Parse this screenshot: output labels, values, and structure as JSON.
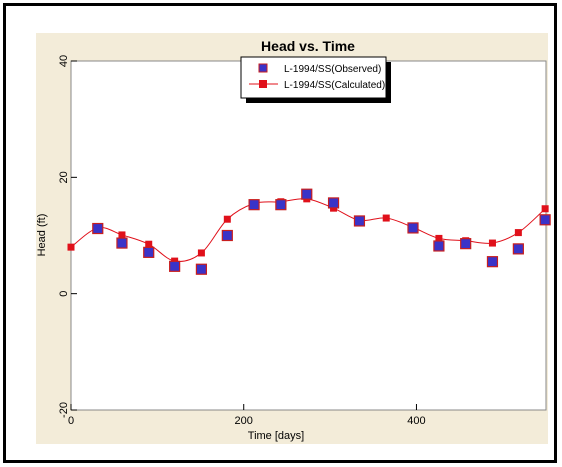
{
  "colors": {
    "panel": "#f3ecd9",
    "plot": "#ffffff",
    "observed_fill": "#3a33c8",
    "observed_edge": "#c81e1e",
    "calculated": "#e0101a"
  },
  "chart_data": {
    "type": "scatter",
    "title": "Head vs. Time",
    "xlabel": "Time  [days]",
    "ylabel": "Head (ft)",
    "xlim": [
      0,
      550
    ],
    "ylim": [
      -20,
      40
    ],
    "x_ticks": [
      "0",
      "200",
      "400"
    ],
    "x_tick_values": [
      0,
      200,
      400
    ],
    "y_ticks": [
      "-20",
      "0",
      "20",
      "40"
    ],
    "y_tick_values": [
      -20,
      0,
      20,
      40
    ],
    "grid": false,
    "legend_position": "top-center",
    "series": [
      {
        "name": "L-1994/SS(Observed)",
        "style": "markers",
        "x": [
          31,
          59,
          90,
          120,
          151,
          181,
          212,
          243,
          273,
          304,
          334,
          396,
          426,
          457,
          488,
          518,
          549
        ],
        "y": [
          11.2,
          8.7,
          7.1,
          4.7,
          4.2,
          10.0,
          15.3,
          15.3,
          17.1,
          15.6,
          12.5,
          11.3,
          8.2,
          8.6,
          5.5,
          7.7,
          12.7
        ]
      },
      {
        "name": "L-1994/SS(Calculated)",
        "style": "line+markers",
        "x": [
          0,
          31,
          59,
          90,
          120,
          151,
          181,
          212,
          243,
          273,
          304,
          334,
          365,
          396,
          426,
          457,
          488,
          518,
          549
        ],
        "y": [
          8.0,
          11.3,
          10.1,
          8.5,
          5.6,
          7.0,
          12.8,
          15.5,
          15.8,
          16.3,
          14.7,
          12.6,
          13.0,
          11.4,
          9.5,
          9.1,
          8.7,
          10.5,
          14.6
        ]
      }
    ]
  }
}
